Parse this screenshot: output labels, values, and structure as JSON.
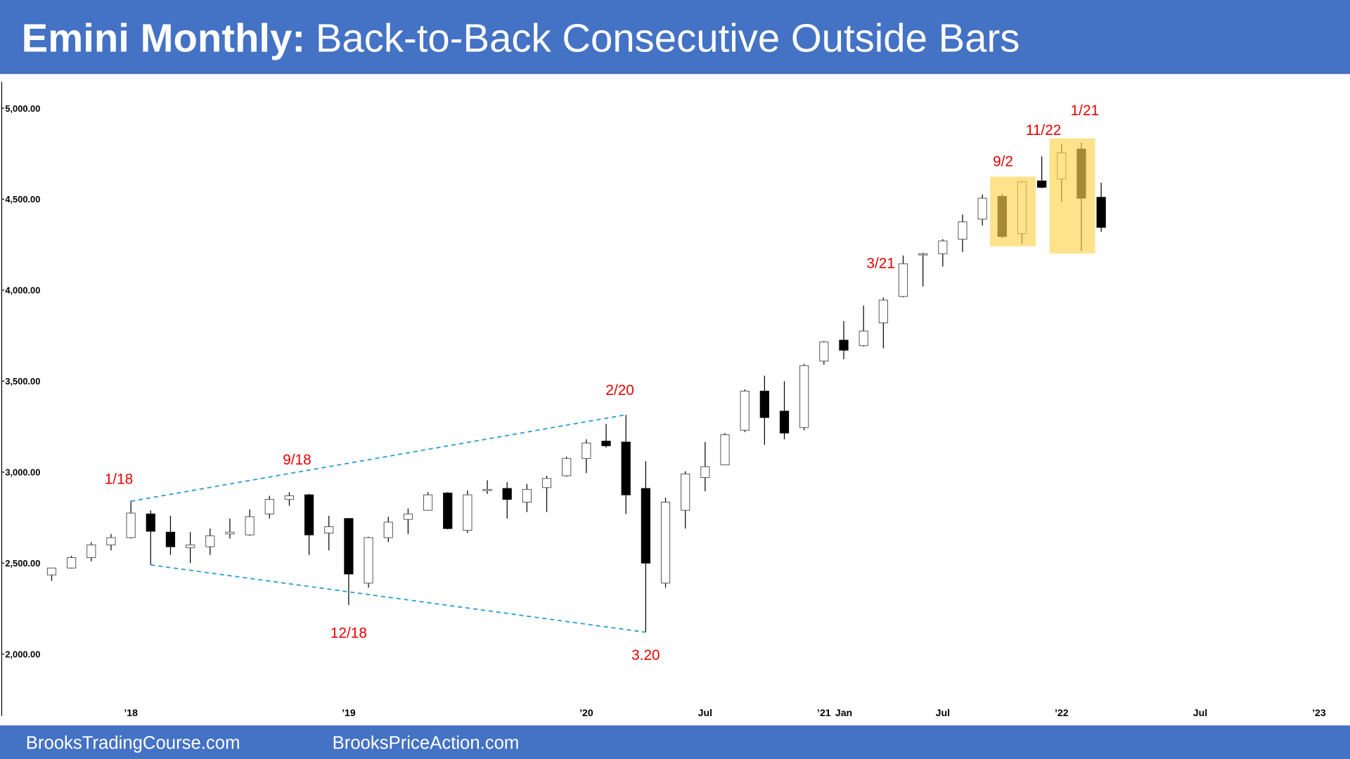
{
  "chart_data": {
    "type": "candlestick",
    "title_lead": "Emini Monthly:",
    "title": "Back-to-Back Consecutive Outside Bars",
    "categories": [
      null,
      null,
      null,
      null,
      "’18",
      null,
      null,
      null,
      null,
      null,
      null,
      null,
      null,
      null,
      null,
      "’19",
      null,
      null,
      null,
      null,
      null,
      null,
      null,
      null,
      null,
      null,
      null,
      "’20",
      null,
      null,
      null,
      null,
      null,
      "Jul",
      null,
      null,
      null,
      null,
      null,
      "’21",
      "Jan",
      null,
      null,
      null,
      null,
      "Jul",
      null,
      null,
      null,
      null,
      null,
      "’22",
      null,
      null,
      null,
      null,
      null,
      null,
      "Jul",
      null,
      null,
      null,
      null,
      null,
      "’23"
    ],
    "open": [
      2435,
      2473,
      2530,
      2600,
      2640,
      2770,
      2670,
      2585,
      2590,
      2660,
      2655,
      2770,
      2850,
      2875,
      2665,
      2745,
      2390,
      2640,
      2740,
      2790,
      2885,
      2680,
      2900,
      2910,
      2835,
      2915,
      2980,
      3075,
      3170,
      3165,
      2910,
      2390,
      2790,
      2970,
      3040,
      3230,
      3445,
      3335,
      3245,
      3610,
      3725,
      3695,
      3820,
      3965,
      4195,
      4200,
      4280,
      4390,
      4515,
      4310,
      4600,
      4610,
      4775,
      4510,
      null,
      null,
      null,
      null,
      null,
      null,
      null,
      null,
      null,
      null,
      null
    ],
    "high": [
      2475,
      2540,
      2615,
      2660,
      2840,
      2790,
      2760,
      2670,
      2690,
      2745,
      2795,
      2870,
      2890,
      2880,
      2760,
      2745,
      2645,
      2755,
      2800,
      2890,
      2890,
      2900,
      2955,
      2945,
      2935,
      2980,
      3085,
      3180,
      3265,
      3315,
      3060,
      2860,
      3005,
      3165,
      3215,
      3455,
      3530,
      3500,
      3595,
      3720,
      3830,
      3915,
      3960,
      4190,
      4205,
      4280,
      4415,
      4525,
      4530,
      4600,
      4735,
      4800,
      4810,
      4590,
      null,
      null,
      null,
      null,
      null,
      null,
      null,
      null,
      null,
      null,
      null
    ],
    "low": [
      2402,
      2470,
      2510,
      2570,
      2635,
      2490,
      2545,
      2500,
      2545,
      2635,
      2650,
      2745,
      2815,
      2545,
      2570,
      2270,
      2365,
      2615,
      2660,
      2790,
      2685,
      2665,
      2880,
      2745,
      2780,
      2780,
      2975,
      2995,
      3135,
      2770,
      2120,
      2365,
      2690,
      2895,
      3040,
      3220,
      3150,
      3180,
      3230,
      3590,
      3620,
      3690,
      3680,
      3960,
      4020,
      4130,
      4210,
      4355,
      4285,
      4255,
      4560,
      4485,
      4215,
      4320,
      null,
      null,
      null,
      null,
      null,
      null,
      null,
      null,
      null,
      null,
      null
    ],
    "close": [
      2473,
      2530,
      2600,
      2640,
      2775,
      2675,
      2590,
      2600,
      2650,
      2670,
      2755,
      2850,
      2870,
      2655,
      2700,
      2440,
      2640,
      2725,
      2770,
      2875,
      2690,
      2875,
      2905,
      2850,
      2905,
      2965,
      3075,
      3160,
      3145,
      2875,
      2500,
      2835,
      2990,
      3030,
      3205,
      3445,
      3300,
      3215,
      3585,
      3715,
      3670,
      3775,
      3945,
      4145,
      4200,
      4270,
      4375,
      4505,
      4295,
      4595,
      4565,
      4755,
      4505,
      4345,
      null,
      null,
      null,
      null,
      null,
      null,
      null,
      null,
      null,
      null,
      null
    ],
    "up_color": "#ffffff",
    "down_color": "#000000",
    "ylim": [
      1660,
      5145
    ],
    "yticks": [
      {
        "value": 2000,
        "label": "2,000.00"
      },
      {
        "value": 2500,
        "label": "2,500.00"
      },
      {
        "value": 3000,
        "label": "3,000.00"
      },
      {
        "value": 3500,
        "label": "3,500.00"
      },
      {
        "value": 4000,
        "label": "4,000.00"
      },
      {
        "value": 4500,
        "label": "4,500.00"
      },
      {
        "value": 5000,
        "label": "5,000.00"
      }
    ],
    "grid": false,
    "annotations": [
      "1/18",
      "9/18",
      "12/18",
      "2/20",
      "3.20",
      "3/21",
      "9/2",
      "11/22",
      "1/21"
    ]
  },
  "footer": {
    "left": "BrooksTradingCourse.com",
    "right": "BrooksPriceAction.com"
  }
}
